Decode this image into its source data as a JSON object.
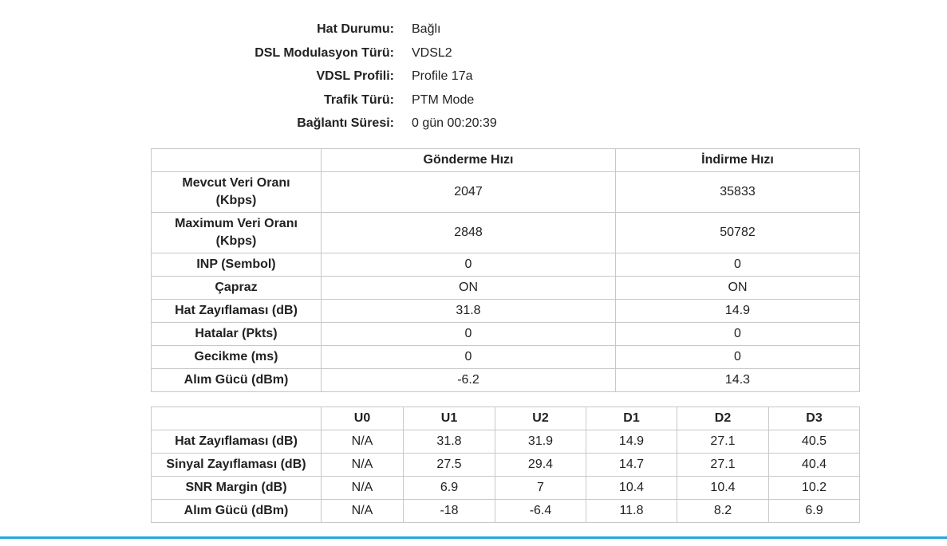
{
  "info": [
    {
      "label": "Hat Durumu:",
      "value": "Bağlı"
    },
    {
      "label": "DSL Modulasyon Türü:",
      "value": "VDSL2"
    },
    {
      "label": "VDSL Profili:",
      "value": "Profile 17a"
    },
    {
      "label": "Trafik Türü:",
      "value": "PTM Mode"
    },
    {
      "label": "Bağlantı Süresi:",
      "value": "0 gün 00:20:39"
    }
  ],
  "rates": {
    "headers": [
      "",
      "Gönderme Hızı",
      "İndirme Hızı"
    ],
    "rows": [
      {
        "label_line1": "Mevcut Veri Oranı",
        "label_line2": "(Kbps)",
        "up": "2047",
        "down": "35833"
      },
      {
        "label_line1": "Maximum Veri Oranı",
        "label_line2": "(Kbps)",
        "up": "2848",
        "down": "50782"
      },
      {
        "label": "INP (Sembol)",
        "up": "0",
        "down": "0"
      },
      {
        "label": "Çapraz",
        "up": "ON",
        "down": "ON"
      },
      {
        "label": "Hat Zayıflaması (dB)",
        "up": "31.8",
        "down": "14.9"
      },
      {
        "label": "Hatalar (Pkts)",
        "up": "0",
        "down": "0"
      },
      {
        "label": "Gecikme (ms)",
        "up": "0",
        "down": "0"
      },
      {
        "label": "Alım Gücü (dBm)",
        "up": "-6.2",
        "down": "14.3"
      }
    ]
  },
  "bands": {
    "headers": [
      "",
      "U0",
      "U1",
      "U2",
      "D1",
      "D2",
      "D3"
    ],
    "rows": [
      {
        "label": "Hat Zayıflaması (dB)",
        "values": [
          "N/A",
          "31.8",
          "31.9",
          "14.9",
          "27.1",
          "40.5"
        ]
      },
      {
        "label": "Sinyal Zayıflaması (dB)",
        "values": [
          "N/A",
          "27.5",
          "29.4",
          "14.7",
          "27.1",
          "40.4"
        ]
      },
      {
        "label": "SNR Margin (dB)",
        "values": [
          "N/A",
          "6.9",
          "7",
          "10.4",
          "10.4",
          "10.2"
        ]
      },
      {
        "label": "Alım Gücü (dBm)",
        "values": [
          "N/A",
          "-18",
          "-6.4",
          "11.8",
          "8.2",
          "6.9"
        ]
      }
    ]
  },
  "colors": {
    "accent_line": "#2aa6dd",
    "table_border": "#c8c8c8"
  }
}
